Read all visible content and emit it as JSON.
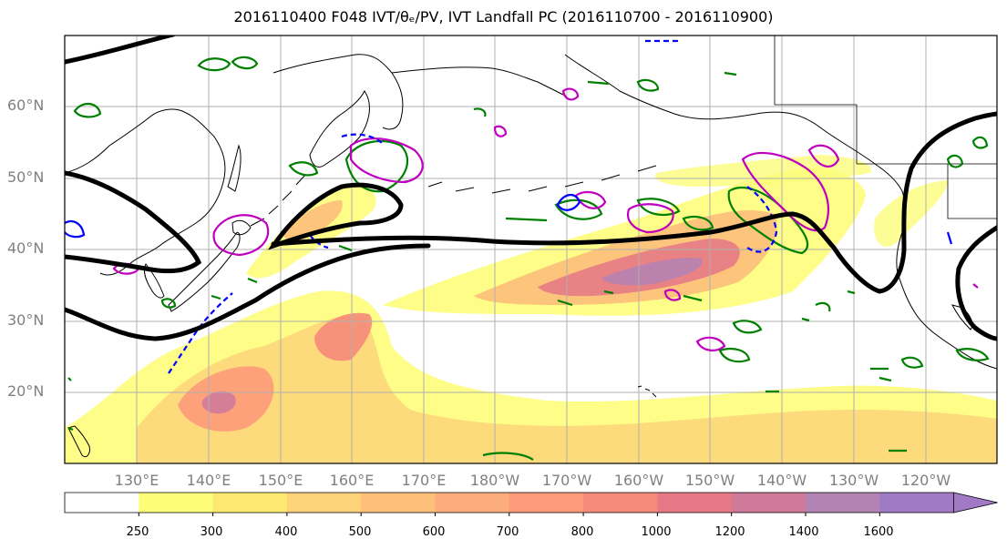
{
  "title": "2016110400 F048 IVT/θₑ/PV, IVT Landfall PC (2016110700 - 2016110900)",
  "map": {
    "lat_labels": [
      "60°N",
      "50°N",
      "40°N",
      "30°N",
      "20°N"
    ],
    "lon_labels": [
      "130°E",
      "140°E",
      "150°E",
      "160°E",
      "170°E",
      "180°W",
      "170°W",
      "160°W",
      "150°W",
      "140°W",
      "130°W",
      "120°W"
    ],
    "colors": {
      "theta_e_contour": "#000000",
      "pv_green": "#008000",
      "pv_magenta": "#bf00bf",
      "pv_blue": "#0000ff",
      "coast": "#000000",
      "grid": "#b0b0b0"
    }
  },
  "colorbar": {
    "levels": [
      "250",
      "300",
      "400",
      "500",
      "600",
      "700",
      "800",
      "1000",
      "1200",
      "1400",
      "1600"
    ],
    "colors": [
      "#ffffff",
      "#fdfd7a",
      "#fde972",
      "#fdd37a",
      "#fdbf7a",
      "#fdac7c",
      "#fd9a7a",
      "#f68a7a",
      "#e57a86",
      "#d07a9a",
      "#b383b4",
      "#a07ac4"
    ],
    "extend": "max"
  }
}
